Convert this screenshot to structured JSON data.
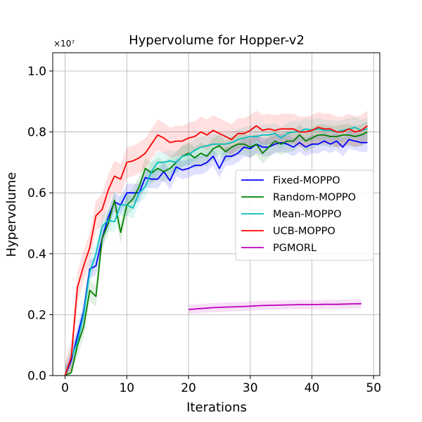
{
  "chart_data": {
    "type": "line",
    "title": "Hypervolume for Hopper-v2",
    "xlabel": "Iterations",
    "ylabel": "Hypervolume",
    "scale_note": "×10⁷",
    "xlim": [
      -2,
      51
    ],
    "ylim": [
      0,
      1.06
    ],
    "xticks": [
      0,
      10,
      20,
      30,
      40,
      50
    ],
    "yticks": [
      0.0,
      0.2,
      0.4,
      0.6,
      0.8,
      1.0
    ],
    "xtick_labels": [
      "0",
      "10",
      "20",
      "30",
      "40",
      "50"
    ],
    "ytick_labels": [
      "0.0",
      "0.2",
      "0.4",
      "0.6",
      "0.8",
      "1.0"
    ],
    "grid": true,
    "legend_position": "center-right",
    "series": [
      {
        "name": "Fixed-MOPPO",
        "color": "#0000ff",
        "band": 0.03,
        "x": [
          0,
          1,
          2,
          3,
          4,
          5,
          6,
          7,
          8,
          9,
          10,
          11,
          12,
          13,
          14,
          15,
          16,
          17,
          18,
          19,
          20,
          21,
          22,
          23,
          24,
          25,
          26,
          27,
          28,
          29,
          30,
          31,
          32,
          33,
          34,
          35,
          36,
          37,
          38,
          39,
          40,
          41,
          42,
          43,
          44,
          45,
          46,
          47,
          48,
          49
        ],
        "y": [
          0.0,
          0.05,
          0.13,
          0.21,
          0.35,
          0.36,
          0.45,
          0.52,
          0.57,
          0.56,
          0.6,
          0.6,
          0.6,
          0.65,
          0.645,
          0.645,
          0.67,
          0.64,
          0.685,
          0.675,
          0.68,
          0.69,
          0.69,
          0.7,
          0.72,
          0.68,
          0.72,
          0.72,
          0.73,
          0.75,
          0.745,
          0.76,
          0.75,
          0.75,
          0.76,
          0.765,
          0.76,
          0.75,
          0.765,
          0.75,
          0.76,
          0.76,
          0.77,
          0.76,
          0.77,
          0.75,
          0.775,
          0.77,
          0.765,
          0.765
        ]
      },
      {
        "name": "Random-MOPPO",
        "color": "#008000",
        "band": 0.035,
        "x": [
          0,
          1,
          2,
          3,
          4,
          5,
          6,
          7,
          8,
          9,
          10,
          11,
          12,
          13,
          14,
          15,
          16,
          17,
          18,
          19,
          20,
          21,
          22,
          23,
          24,
          25,
          26,
          27,
          28,
          29,
          30,
          31,
          32,
          33,
          34,
          35,
          36,
          37,
          38,
          39,
          40,
          41,
          42,
          43,
          44,
          45,
          46,
          47,
          48,
          49
        ],
        "y": [
          0.0,
          0.01,
          0.1,
          0.16,
          0.28,
          0.26,
          0.45,
          0.5,
          0.575,
          0.47,
          0.56,
          0.58,
          0.62,
          0.68,
          0.665,
          0.68,
          0.67,
          0.68,
          0.7,
          0.72,
          0.73,
          0.715,
          0.73,
          0.72,
          0.745,
          0.755,
          0.735,
          0.75,
          0.76,
          0.76,
          0.75,
          0.76,
          0.73,
          0.75,
          0.77,
          0.76,
          0.77,
          0.77,
          0.79,
          0.77,
          0.78,
          0.79,
          0.79,
          0.785,
          0.785,
          0.79,
          0.79,
          0.785,
          0.79,
          0.8
        ]
      },
      {
        "name": "Mean-MOPPO",
        "color": "#00bfbf",
        "band": 0.035,
        "x": [
          0,
          1,
          2,
          3,
          4,
          5,
          6,
          7,
          8,
          9,
          10,
          11,
          12,
          13,
          14,
          15,
          16,
          17,
          18,
          19,
          20,
          21,
          22,
          23,
          24,
          25,
          26,
          27,
          28,
          29,
          30,
          31,
          32,
          33,
          34,
          35,
          36,
          37,
          38,
          39,
          40,
          41,
          42,
          43,
          44,
          45,
          46,
          47,
          48,
          49
        ],
        "y": [
          0.0,
          0.06,
          0.11,
          0.2,
          0.34,
          0.4,
          0.49,
          0.51,
          0.505,
          0.56,
          0.56,
          0.55,
          0.6,
          0.62,
          0.67,
          0.7,
          0.7,
          0.705,
          0.7,
          0.72,
          0.725,
          0.74,
          0.75,
          0.755,
          0.76,
          0.76,
          0.76,
          0.765,
          0.775,
          0.78,
          0.785,
          0.785,
          0.79,
          0.79,
          0.795,
          0.78,
          0.795,
          0.8,
          0.8,
          0.81,
          0.805,
          0.81,
          0.805,
          0.805,
          0.8,
          0.805,
          0.81,
          0.815,
          0.805,
          0.81
        ]
      },
      {
        "name": "UCB-MOPPO",
        "color": "#ff0000",
        "band": 0.05,
        "x": [
          0,
          1,
          2,
          3,
          4,
          5,
          6,
          7,
          8,
          9,
          10,
          11,
          12,
          13,
          14,
          15,
          16,
          17,
          18,
          19,
          20,
          21,
          22,
          23,
          24,
          25,
          26,
          27,
          28,
          29,
          30,
          31,
          32,
          33,
          34,
          35,
          36,
          37,
          38,
          39,
          40,
          41,
          42,
          43,
          44,
          45,
          46,
          47,
          48,
          49
        ],
        "y": [
          0.0,
          0.06,
          0.29,
          0.36,
          0.42,
          0.525,
          0.545,
          0.61,
          0.655,
          0.645,
          0.7,
          0.705,
          0.715,
          0.73,
          0.76,
          0.79,
          0.78,
          0.765,
          0.77,
          0.77,
          0.78,
          0.785,
          0.8,
          0.79,
          0.805,
          0.795,
          0.785,
          0.775,
          0.795,
          0.795,
          0.805,
          0.82,
          0.805,
          0.81,
          0.805,
          0.81,
          0.81,
          0.81,
          0.8,
          0.8,
          0.805,
          0.815,
          0.81,
          0.81,
          0.8,
          0.8,
          0.81,
          0.8,
          0.805,
          0.82
        ]
      },
      {
        "name": "PGMORL",
        "color": "#bf00bf",
        "band": 0.015,
        "x": [
          20,
          22,
          24,
          26,
          28,
          30,
          32,
          34,
          36,
          38,
          40,
          42,
          44,
          46,
          48
        ],
        "y": [
          0.217,
          0.22,
          0.223,
          0.225,
          0.226,
          0.228,
          0.23,
          0.231,
          0.232,
          0.233,
          0.233,
          0.234,
          0.234,
          0.235,
          0.236
        ]
      }
    ]
  }
}
